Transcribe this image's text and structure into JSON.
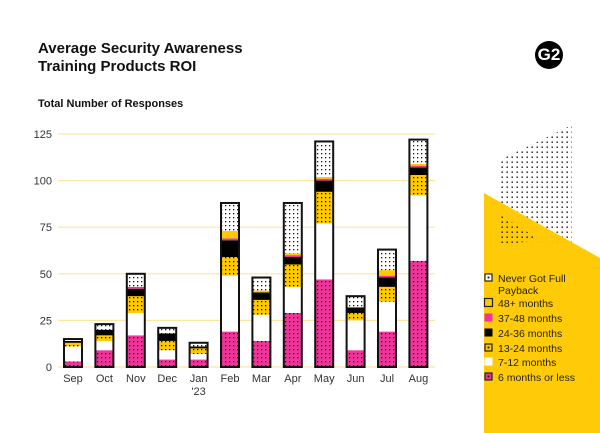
{
  "header": {
    "title": "Average Security Awareness Training Products ROI",
    "logo_text": "G2"
  },
  "chart_data": {
    "type": "bar",
    "stacked": true,
    "title": "Average Security Awareness Training Products ROI",
    "subtitle": "Total Number of Responses",
    "categories": [
      "Sep",
      "Oct",
      "Nov",
      "Dec",
      "Jan '23",
      "Feb",
      "Mar",
      "Apr",
      "May",
      "Jun",
      "Jul",
      "Aug"
    ],
    "ylim": [
      0,
      125
    ],
    "yticks": [
      0,
      25,
      50,
      75,
      100,
      125
    ],
    "grid": true,
    "legend_position": "right",
    "series": [
      {
        "name": "6 months or less",
        "color": "#f0359a",
        "pattern": "dots",
        "values": [
          3,
          9,
          17,
          4,
          4,
          19,
          14,
          29,
          47,
          9,
          19,
          57
        ]
      },
      {
        "name": "7-12 months",
        "color": "#ffffff",
        "pattern": "solid",
        "values": [
          8,
          5,
          12,
          5,
          3,
          30,
          14,
          14,
          30,
          16,
          16,
          35
        ]
      },
      {
        "name": "13-24 months",
        "color": "#ffc800",
        "pattern": "dots",
        "values": [
          2,
          3,
          9,
          5,
          3,
          10,
          8,
          12,
          17,
          4,
          8,
          11
        ]
      },
      {
        "name": "24-36 months",
        "color": "#000000",
        "pattern": "solid",
        "values": [
          1,
          3,
          4,
          4,
          1,
          9,
          4,
          4,
          6,
          3,
          5,
          4
        ]
      },
      {
        "name": "37-48 months",
        "color": "#f0359a",
        "pattern": "solid",
        "values": [
          0,
          0,
          1,
          0,
          0,
          1,
          0,
          1,
          1,
          0,
          1,
          1
        ]
      },
      {
        "name": "48+ months",
        "color": "#ffc800",
        "pattern": "solid",
        "values": [
          0,
          0,
          0,
          0,
          0,
          4,
          1,
          1,
          1,
          0,
          3,
          1
        ]
      },
      {
        "name": "Never Got Full Payback",
        "color": "#ffffff",
        "pattern": "dots",
        "values": [
          1,
          3,
          7,
          3,
          2,
          15,
          7,
          27,
          19,
          6,
          11,
          13
        ]
      }
    ],
    "legend_order": [
      "Never Got Full Payback",
      "48+ months",
      "37-48 months",
      "24-36 months",
      "13-24 months",
      "7-12 months",
      "6 months or less"
    ]
  },
  "colors": {
    "accent_yellow": "#ffc800",
    "accent_pink": "#f0359a",
    "grid": "#fbe7a1"
  }
}
